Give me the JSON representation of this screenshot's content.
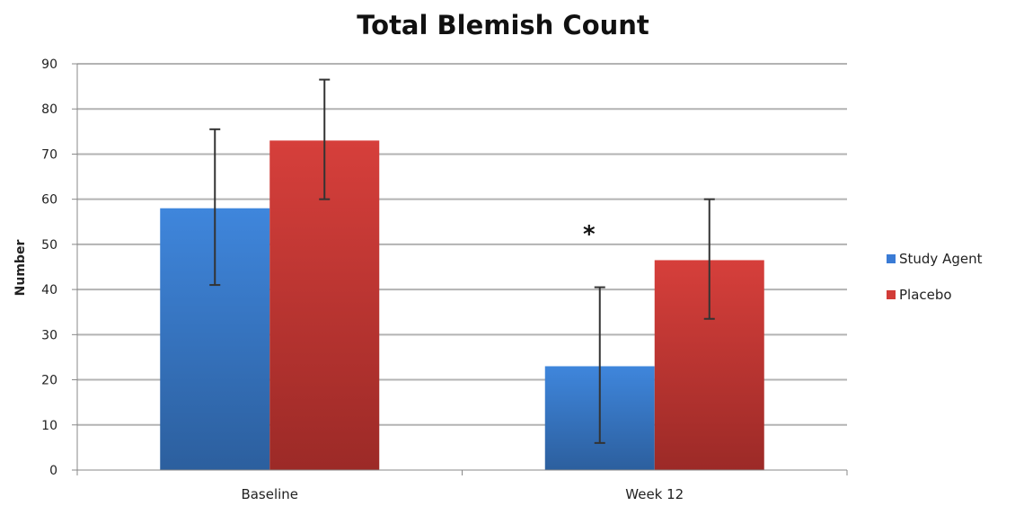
{
  "chart_data": {
    "type": "bar",
    "title": "Total Blemish Count",
    "xlabel": "",
    "ylabel": "Number",
    "ylim": [
      0,
      90
    ],
    "yticks": [
      0,
      10,
      20,
      30,
      40,
      50,
      60,
      70,
      80,
      90
    ],
    "categories": [
      "Baseline",
      "Week 12"
    ],
    "series": [
      {
        "name": "Study Agent",
        "color": "#3a7bd5",
        "values": [
          58,
          23
        ],
        "error_low": [
          41,
          6
        ],
        "error_high": [
          75.5,
          40.5
        ]
      },
      {
        "name": "Placebo",
        "color": "#d23c38",
        "values": [
          73,
          46.5
        ],
        "error_low": [
          60,
          33.5
        ],
        "error_high": [
          86.5,
          60
        ]
      }
    ],
    "annotations": [
      {
        "text": "*",
        "category": "Week 12",
        "y": 54
      }
    ],
    "grid": true,
    "legend": "right"
  }
}
